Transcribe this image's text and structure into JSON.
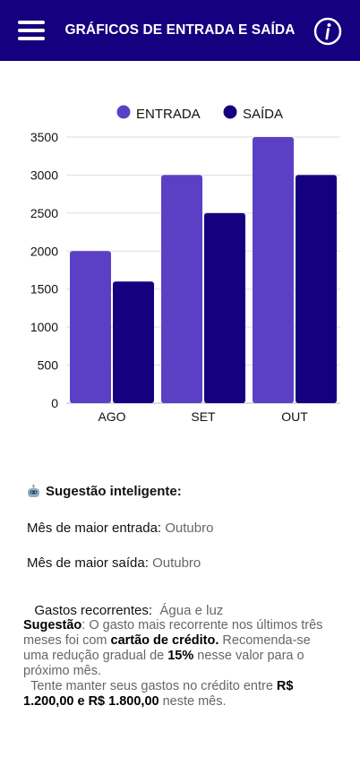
{
  "header": {
    "title": "GRÁFICOS DE ENTRADA E SAÍDA",
    "menu_icon": "hamburger-menu-icon",
    "info_icon": "info-icon"
  },
  "colors": {
    "header_bg": "#15007f",
    "entrada": "#5b40c6",
    "saida": "#15007f"
  },
  "chart_data": {
    "type": "bar",
    "categories": [
      "AGO",
      "SET",
      "OUT"
    ],
    "series": [
      {
        "name": "ENTRADA",
        "values": [
          2000,
          3000,
          3500
        ]
      },
      {
        "name": "SAÍDA",
        "values": [
          1600,
          2500,
          3000
        ]
      }
    ],
    "yticks": [
      "0",
      "500",
      "1000",
      "1500",
      "2000",
      "2500",
      "3000",
      "3500"
    ],
    "ylim": [
      0,
      3500
    ],
    "grid": true,
    "legend": "top-center"
  },
  "insights": {
    "icon": "robot-icon",
    "title": "Sugestão inteligente:",
    "rows": [
      {
        "label": "Mês de maior entrada: ",
        "value": "Outubro"
      },
      {
        "label": "Mês de maior saída: ",
        "value": "Outubro"
      },
      {
        "label": "Gastos recorrentes:  ",
        "value": "Água e luz"
      }
    ]
  },
  "suggestion": {
    "lead": "Sugestão",
    "t1": ": O gasto mais recorrente nos últimos três meses foi com ",
    "b1": "cartão de crédito.",
    "t2": " Recomenda-se uma redução gradual de ",
    "b2": "15%",
    "t3": " nesse valor para o próximo mês.",
    "t4": "  Tente manter seus gastos no crédito entre ",
    "b3": "R$ 1.200,00 e R$ 1.800,00",
    "t5": " neste mês."
  }
}
